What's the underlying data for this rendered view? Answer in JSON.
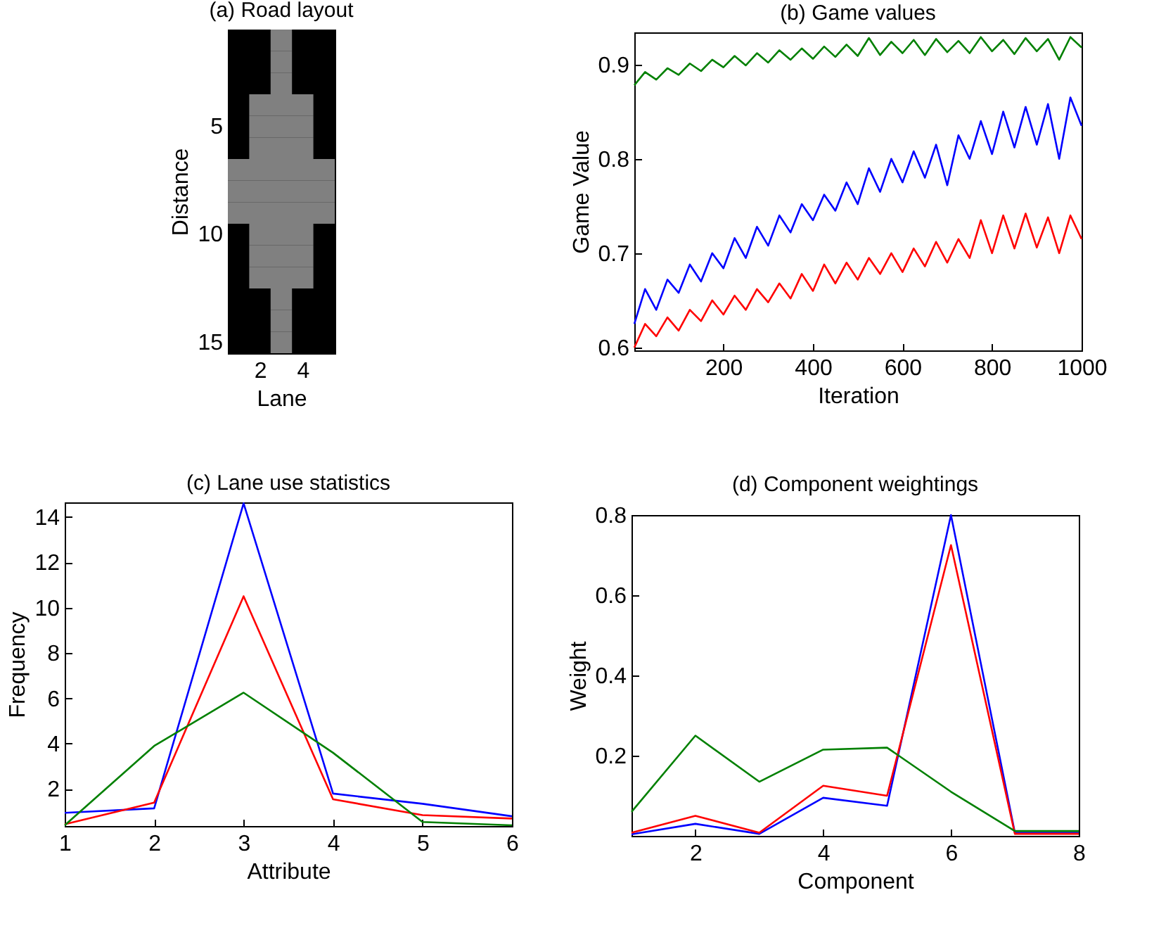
{
  "chart_data": [
    {
      "type": "bar",
      "orientation": "horizontal",
      "title": "(a) Road layout",
      "xlabel": "Lane",
      "ylabel": "Distance",
      "categories": [
        null,
        null,
        null,
        null,
        "5",
        null,
        null,
        null,
        null,
        "10",
        null,
        null,
        null,
        null,
        "15"
      ],
      "base": [
        2.5,
        2.5,
        2.5,
        1.5,
        1.5,
        1.5,
        0.5,
        0.5,
        0.5,
        1.5,
        1.5,
        1.5,
        2.5,
        2.5,
        2.5
      ],
      "values": [
        1,
        1,
        1,
        3,
        3,
        3,
        5,
        5,
        5,
        3,
        3,
        3,
        1,
        1,
        1
      ],
      "color": "#808080",
      "xlim": [
        0.5,
        5.5
      ],
      "xticks": [
        2,
        4
      ]
    },
    {
      "type": "line",
      "title": "(b) Game values",
      "xlabel": "Iteration",
      "ylabel": "Game Value",
      "x": [
        1,
        25,
        50,
        75,
        100,
        125,
        150,
        175,
        200,
        225,
        250,
        275,
        300,
        325,
        350,
        375,
        400,
        425,
        450,
        475,
        500,
        525,
        550,
        575,
        600,
        625,
        650,
        675,
        700,
        725,
        750,
        775,
        800,
        825,
        850,
        875,
        900,
        925,
        950,
        975,
        1000
      ],
      "xlim": [
        1,
        1000
      ],
      "xticks": [
        200,
        400,
        600,
        800,
        1000
      ],
      "ylim": [
        0.597,
        0.934
      ],
      "yticks": [
        0.6,
        0.7,
        0.8,
        0.9
      ],
      "series": [
        {
          "color": "#008000",
          "values": [
            0.878,
            0.892,
            0.884,
            0.896,
            0.889,
            0.901,
            0.893,
            0.905,
            0.897,
            0.909,
            0.899,
            0.912,
            0.902,
            0.915,
            0.905,
            0.917,
            0.906,
            0.919,
            0.908,
            0.921,
            0.909,
            0.928,
            0.91,
            0.924,
            0.912,
            0.926,
            0.91,
            0.927,
            0.913,
            0.925,
            0.912,
            0.929,
            0.914,
            0.926,
            0.911,
            0.928,
            0.914,
            0.927,
            0.905,
            0.929,
            0.918
          ]
        },
        {
          "color": "#0000ff",
          "values": [
            0.625,
            0.662,
            0.64,
            0.672,
            0.658,
            0.688,
            0.67,
            0.7,
            0.684,
            0.716,
            0.695,
            0.728,
            0.708,
            0.74,
            0.722,
            0.752,
            0.735,
            0.762,
            0.745,
            0.775,
            0.752,
            0.79,
            0.765,
            0.8,
            0.775,
            0.808,
            0.78,
            0.815,
            0.772,
            0.825,
            0.8,
            0.84,
            0.805,
            0.85,
            0.812,
            0.855,
            0.815,
            0.858,
            0.8,
            0.865,
            0.835
          ]
        },
        {
          "color": "#ff0000",
          "values": [
            0.6,
            0.625,
            0.612,
            0.632,
            0.618,
            0.64,
            0.628,
            0.65,
            0.635,
            0.655,
            0.64,
            0.662,
            0.648,
            0.668,
            0.652,
            0.678,
            0.66,
            0.688,
            0.668,
            0.69,
            0.672,
            0.695,
            0.678,
            0.7,
            0.68,
            0.705,
            0.686,
            0.712,
            0.69,
            0.715,
            0.695,
            0.735,
            0.7,
            0.74,
            0.705,
            0.742,
            0.706,
            0.738,
            0.7,
            0.74,
            0.715
          ]
        }
      ]
    },
    {
      "type": "line",
      "title": "(c) Lane use statistics",
      "xlabel": "Attribute",
      "ylabel": "Frequency",
      "x": [
        1,
        2,
        3,
        4,
        5,
        6
      ],
      "xlim": [
        1,
        6
      ],
      "xticks": [
        1,
        2,
        3,
        4,
        5,
        6
      ],
      "ylim": [
        0.37,
        14.64
      ],
      "yticks": [
        2,
        4,
        6,
        8,
        10,
        12,
        14
      ],
      "series": [
        {
          "color": "#0000ff",
          "values": [
            0.95,
            1.15,
            14.6,
            1.8,
            1.35,
            0.8
          ]
        },
        {
          "color": "#ff0000",
          "values": [
            0.45,
            1.4,
            10.5,
            1.55,
            0.85,
            0.7
          ]
        },
        {
          "color": "#008000",
          "values": [
            0.4,
            3.9,
            6.25,
            3.6,
            0.55,
            0.4
          ]
        }
      ]
    },
    {
      "type": "line",
      "title": "(d) Component weightings",
      "xlabel": "Component",
      "ylabel": "Weight",
      "x": [
        1,
        2,
        3,
        4,
        5,
        6,
        7,
        8
      ],
      "xlim": [
        1,
        8
      ],
      "xticks": [
        2,
        4,
        6,
        8
      ],
      "ylim": [
        0,
        0.8
      ],
      "yticks": [
        0.2,
        0.4,
        0.6,
        0.8
      ],
      "series": [
        {
          "color": "#0000ff",
          "values": [
            0.004,
            0.03,
            0.005,
            0.095,
            0.075,
            0.8,
            0.008,
            0.008
          ]
        },
        {
          "color": "#ff0000",
          "values": [
            0.008,
            0.05,
            0.008,
            0.125,
            0.1,
            0.725,
            0.005,
            0.005
          ]
        },
        {
          "color": "#008000",
          "values": [
            0.06,
            0.25,
            0.135,
            0.215,
            0.22,
            0.11,
            0.012,
            0.012
          ]
        }
      ]
    }
  ]
}
